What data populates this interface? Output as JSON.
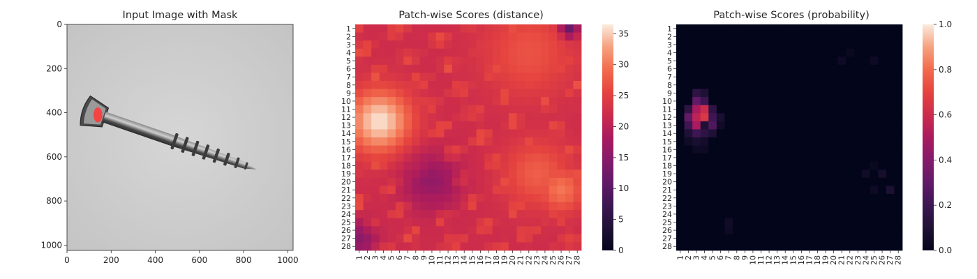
{
  "panels": {
    "image": {
      "title": "Input Image with Mask",
      "x_ticks": [
        "0",
        "200",
        "400",
        "600",
        "800",
        "1000"
      ],
      "y_ticks": [
        "0",
        "200",
        "400",
        "600",
        "800",
        "1000"
      ]
    },
    "distance": {
      "title": "Patch-wise Scores (distance)",
      "colorbar_ticks": [
        "0",
        "5",
        "10",
        "15",
        "20",
        "25",
        "30",
        "35"
      ]
    },
    "probability": {
      "title": "Patch-wise Scores (probability)",
      "colorbar_ticks": [
        "0.0",
        "0.2",
        "0.4",
        "0.6",
        "0.8",
        "1.0"
      ]
    }
  },
  "colors": {
    "colormap": "rocket",
    "mask": "#ff3b3b",
    "image_background": "#cfcfcf"
  },
  "chart_data": [
    {
      "type": "image",
      "title": "Input Image with Mask",
      "xlim": [
        0,
        1024
      ],
      "ylim": [
        1024,
        0
      ],
      "x_ticks": [
        0,
        200,
        400,
        600,
        800,
        1000
      ],
      "y_ticks": [
        0,
        200,
        400,
        600,
        800,
        1000
      ],
      "subject": "grayscale screw with red mask at the screw head",
      "mask_center": [
        140,
        410
      ]
    },
    {
      "type": "heatmap",
      "title": "Patch-wise Scores (distance)",
      "rows": 28,
      "cols": 28,
      "x_ticks": [
        1,
        2,
        3,
        4,
        5,
        6,
        7,
        8,
        9,
        10,
        11,
        12,
        13,
        14,
        15,
        16,
        17,
        18,
        19,
        20,
        21,
        22,
        23,
        24,
        25,
        26,
        27,
        28
      ],
      "y_ticks": [
        1,
        2,
        3,
        4,
        5,
        6,
        7,
        8,
        9,
        10,
        11,
        12,
        13,
        14,
        15,
        16,
        17,
        18,
        19,
        20,
        21,
        22,
        23,
        24,
        25,
        26,
        27,
        28
      ],
      "vmin": 0,
      "vmax": 36.5,
      "colorbar_ticks": [
        0,
        5,
        10,
        15,
        20,
        25,
        30,
        35
      ],
      "colormap": "rocket",
      "grid": false,
      "base": 22,
      "hotspots": [
        {
          "row": 12.5,
          "col": 3.5,
          "value": 36,
          "radius": 2.8
        },
        {
          "row": 4,
          "col": 22,
          "value": 27,
          "radius": 4
        },
        {
          "row": 19,
          "col": 23,
          "value": 28,
          "radius": 3
        },
        {
          "row": 21,
          "col": 26,
          "value": 30,
          "radius": 2
        }
      ],
      "lowspots": [
        {
          "row": 20,
          "col": 10,
          "value": 16,
          "radius": 2.5
        },
        {
          "row": 1,
          "col": 27,
          "value": 12,
          "radius": 0.8
        },
        {
          "row": 27,
          "col": 1,
          "value": 15,
          "radius": 1.5
        }
      ]
    },
    {
      "type": "heatmap",
      "title": "Patch-wise Scores (probability)",
      "rows": 28,
      "cols": 28,
      "x_ticks": [
        1,
        2,
        3,
        4,
        5,
        6,
        7,
        8,
        9,
        10,
        11,
        12,
        13,
        14,
        15,
        16,
        17,
        18,
        19,
        20,
        21,
        22,
        23,
        24,
        25,
        26,
        27,
        28
      ],
      "y_ticks": [
        1,
        2,
        3,
        4,
        5,
        6,
        7,
        8,
        9,
        10,
        11,
        12,
        13,
        14,
        15,
        16,
        17,
        18,
        19,
        20,
        21,
        22,
        23,
        24,
        25,
        26,
        27,
        28
      ],
      "vmin": 0,
      "vmax": 1.0,
      "colorbar_ticks": [
        0.0,
        0.2,
        0.4,
        0.6,
        0.8,
        1.0
      ],
      "colormap": "rocket",
      "grid": false,
      "nonzero_cells": [
        {
          "row": 9,
          "col": 3,
          "value": 0.15
        },
        {
          "row": 9,
          "col": 4,
          "value": 0.1
        },
        {
          "row": 10,
          "col": 3,
          "value": 0.3
        },
        {
          "row": 10,
          "col": 4,
          "value": 0.2
        },
        {
          "row": 11,
          "col": 2,
          "value": 0.15
        },
        {
          "row": 11,
          "col": 3,
          "value": 0.5
        },
        {
          "row": 11,
          "col": 4,
          "value": 0.6
        },
        {
          "row": 11,
          "col": 5,
          "value": 0.15
        },
        {
          "row": 12,
          "col": 2,
          "value": 0.3
        },
        {
          "row": 12,
          "col": 3,
          "value": 0.55
        },
        {
          "row": 12,
          "col": 4,
          "value": 0.65
        },
        {
          "row": 12,
          "col": 5,
          "value": 0.2
        },
        {
          "row": 12,
          "col": 6,
          "value": 0.08
        },
        {
          "row": 13,
          "col": 2,
          "value": 0.2
        },
        {
          "row": 13,
          "col": 3,
          "value": 0.5
        },
        {
          "row": 13,
          "col": 4,
          "value": 0.1
        },
        {
          "row": 13,
          "col": 5,
          "value": 0.25
        },
        {
          "row": 13,
          "col": 6,
          "value": 0.05
        },
        {
          "row": 14,
          "col": 2,
          "value": 0.1
        },
        {
          "row": 14,
          "col": 3,
          "value": 0.2
        },
        {
          "row": 14,
          "col": 4,
          "value": 0.15
        },
        {
          "row": 14,
          "col": 5,
          "value": 0.1
        },
        {
          "row": 15,
          "col": 2,
          "value": 0.05
        },
        {
          "row": 15,
          "col": 3,
          "value": 0.08
        },
        {
          "row": 15,
          "col": 4,
          "value": 0.06
        },
        {
          "row": 16,
          "col": 3,
          "value": 0.04
        },
        {
          "row": 16,
          "col": 4,
          "value": 0.04
        },
        {
          "row": 25,
          "col": 7,
          "value": 0.05
        },
        {
          "row": 26,
          "col": 7,
          "value": 0.04
        },
        {
          "row": 5,
          "col": 21,
          "value": 0.04
        },
        {
          "row": 4,
          "col": 22,
          "value": 0.03
        },
        {
          "row": 5,
          "col": 25,
          "value": 0.04
        },
        {
          "row": 19,
          "col": 24,
          "value": 0.05
        },
        {
          "row": 19,
          "col": 26,
          "value": 0.07
        },
        {
          "row": 21,
          "col": 27,
          "value": 0.09
        },
        {
          "row": 21,
          "col": 25,
          "value": 0.04
        },
        {
          "row": 18,
          "col": 25,
          "value": 0.03
        }
      ]
    }
  ]
}
